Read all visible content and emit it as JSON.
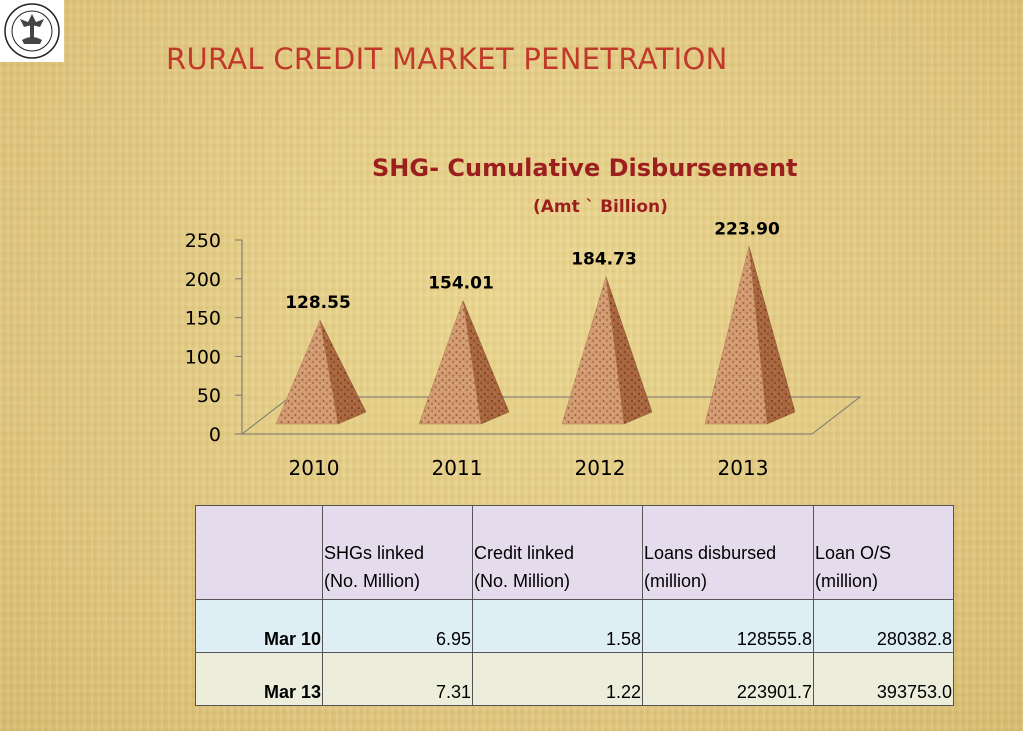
{
  "slide_title": "RURAL CREDIT MARKET PENETRATION",
  "chart_data": {
    "type": "bar",
    "title": "SHG- Cumulative Disbursement",
    "subtitle": "(Amt ` Billion)",
    "categories": [
      "2010",
      "2011",
      "2012",
      "2013"
    ],
    "values": [
      128.55,
      154.01,
      184.73,
      223.9
    ],
    "data_labels": [
      "128.55",
      "154.01",
      "184.73",
      "223.90"
    ],
    "y_ticks": [
      "0",
      "50",
      "100",
      "150",
      "200",
      "250"
    ],
    "ylim": [
      0,
      250
    ],
    "xlabel": "",
    "ylabel": "",
    "bar_shape": "pyramid",
    "grid": false,
    "legend": "none"
  },
  "table": {
    "corner": "",
    "headers": [
      {
        "line1": "SHGs linked",
        "line2": "(No. Million)"
      },
      {
        "line1": "Credit linked",
        "line2": "(No. Million)"
      },
      {
        "line1": "Loans disbursed",
        "line2": "(million)"
      },
      {
        "line1": "Loan O/S",
        "line2": "(million)"
      }
    ],
    "rows": [
      {
        "label": "Mar 10",
        "cells": [
          "6.95",
          "1.58",
          "128555.8",
          "280382.8"
        ]
      },
      {
        "label": "Mar 13",
        "cells": [
          "7.31",
          "1.22",
          "223901.7",
          "393753.0"
        ]
      }
    ]
  },
  "colors": {
    "title": "#c0392b",
    "chart_title": "#9b1f1f",
    "pyramid_light": "#d9a07a",
    "pyramid_dark": "#a8663f",
    "header_fill": "#e4dcec",
    "row1_fill": "#ddeef5",
    "row2_fill": "#eceedb"
  },
  "icons": {
    "logo": "rbi-emblem-icon"
  }
}
